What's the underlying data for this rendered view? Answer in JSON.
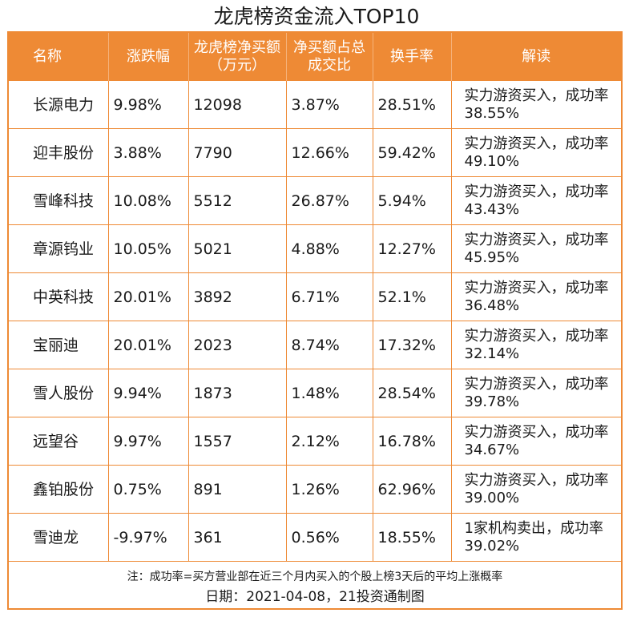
{
  "title": "龙虎榜资金流入TOP10",
  "headers": [
    "名称",
    "涨跌幅",
    "龙虎榜净买额（万元）",
    "净买额占总成交比",
    "换手率",
    "解读"
  ],
  "rows": [
    {
      "name": "长源电力",
      "change": "9.98%",
      "net_buy": "12098",
      "ratio": "3.87%",
      "turnover": "28.51%",
      "note": "实力游资买入，成功率38.55%"
    },
    {
      "name": "迎丰股份",
      "change": "3.88%",
      "net_buy": "7790",
      "ratio": "12.66%",
      "turnover": "59.42%",
      "note": "实力游资买入，成功率49.10%"
    },
    {
      "name": "雪峰科技",
      "change": "10.08%",
      "net_buy": "5512",
      "ratio": "26.87%",
      "turnover": "5.94%",
      "note": "实力游资买入，成功率43.43%"
    },
    {
      "name": "章源钨业",
      "change": "10.05%",
      "net_buy": "5021",
      "ratio": "4.88%",
      "turnover": "12.27%",
      "note": "实力游资买入，成功率45.95%"
    },
    {
      "name": "中英科技",
      "change": "20.01%",
      "net_buy": "3892",
      "ratio": "6.71%",
      "turnover": "52.1%",
      "note": "实力游资买入，成功率36.48%"
    },
    {
      "name": "宝丽迪",
      "change": "20.01%",
      "net_buy": "2023",
      "ratio": "8.74%",
      "turnover": "17.32%",
      "note": "实力游资买入，成功率32.14%"
    },
    {
      "name": "雪人股份",
      "change": "9.94%",
      "net_buy": "1873",
      "ratio": "1.48%",
      "turnover": "28.54%",
      "note": "实力游资买入，成功率39.78%"
    },
    {
      "name": "远望谷",
      "change": "9.97%",
      "net_buy": "1557",
      "ratio": "2.12%",
      "turnover": "16.78%",
      "note": "实力游资买入，成功率34.67%"
    },
    {
      "name": "鑫铂股份",
      "change": "0.75%",
      "net_buy": "891",
      "ratio": "1.26%",
      "turnover": "62.96%",
      "note": "实力游资买入，成功率39.00%"
    },
    {
      "name": "雪迪龙",
      "change": "-9.97%",
      "net_buy": "361",
      "ratio": "0.56%",
      "turnover": "18.55%",
      "note": "1家机构卖出，成功率39.02%"
    }
  ],
  "footnote": "注：成功率=买方营业部在近三个月内买入的个股上榜3天后的平均上涨概率",
  "date_line": "日期：2021-04-08，21投资通制图",
  "colors": {
    "header_bg": "#ee8a35",
    "border": "#ee8a35",
    "header_text": "#ffffff"
  }
}
